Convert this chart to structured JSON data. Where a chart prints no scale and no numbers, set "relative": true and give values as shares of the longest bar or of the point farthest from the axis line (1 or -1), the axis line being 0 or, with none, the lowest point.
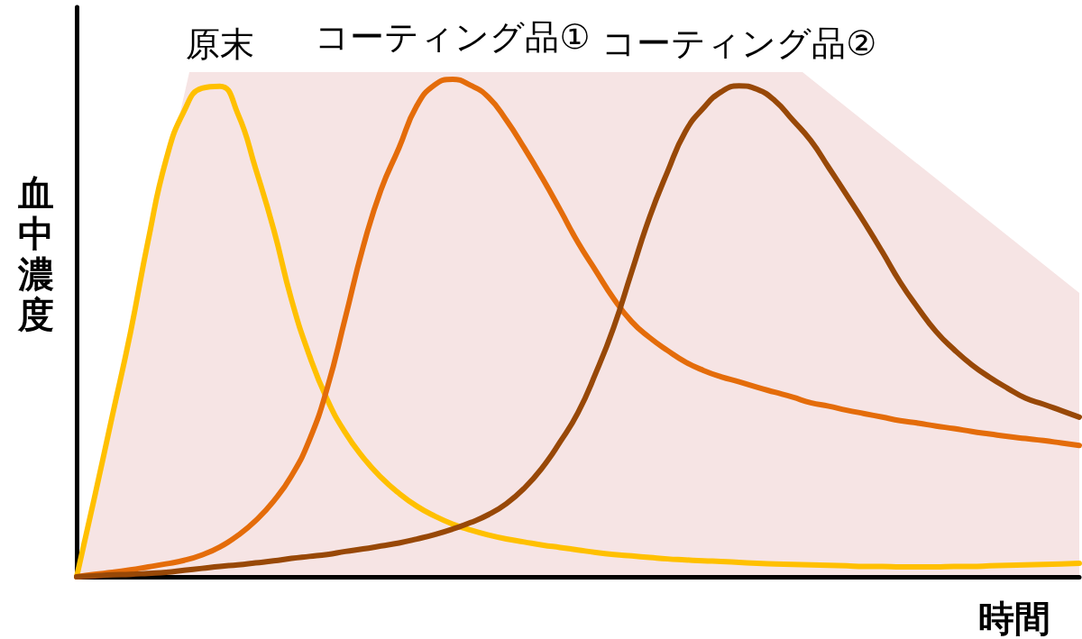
{
  "chart_data": {
    "type": "line",
    "relative": true,
    "xlabel": "時間",
    "ylabel": "血中濃度",
    "line_style": "solid",
    "categories": [
      null,
      null,
      null,
      null,
      null,
      null,
      null,
      null,
      null,
      null,
      null,
      null,
      null,
      null,
      null,
      null,
      null,
      null,
      null,
      null,
      null,
      null,
      null,
      null,
      null,
      null,
      null,
      null,
      null,
      null,
      null,
      null,
      null,
      null,
      null,
      null,
      null,
      null,
      null,
      null,
      null,
      null,
      null,
      null,
      null,
      null,
      null,
      null,
      null,
      null,
      null,
      null,
      null,
      null,
      null,
      null,
      null
    ],
    "series": [
      {
        "name": "原末",
        "color": "#ffc000",
        "values": [
          0,
          0.16,
          0.325,
          0.49,
          0.677,
          0.839,
          0.936,
          0.982,
          0.986,
          0.931,
          0.82,
          0.699,
          0.557,
          0.445,
          0.356,
          0.29,
          0.24,
          0.2,
          0.168,
          0.142,
          0.122,
          0.106,
          0.094,
          0.084,
          0.076,
          0.07,
          0.064,
          0.059,
          0.054,
          0.049,
          0.045,
          0.042,
          0.039,
          0.036,
          0.034,
          0.032,
          0.031,
          0.029,
          0.027,
          0.026,
          0.025,
          0.024,
          0.023,
          0.022,
          0.021,
          0.021,
          0.02,
          0.02,
          0.02,
          0.021,
          0.021,
          0.022,
          0.023,
          0.024,
          0.025,
          0.026,
          0.027
        ]
      },
      {
        "name": "コーティング品①",
        "color": "#e46c0a",
        "values": [
          0,
          0.005,
          0.009,
          0.014,
          0.02,
          0.026,
          0.033,
          0.044,
          0.06,
          0.083,
          0.113,
          0.152,
          0.203,
          0.275,
          0.38,
          0.52,
          0.663,
          0.778,
          0.862,
          0.947,
          0.989,
          1,
          0.988,
          0.964,
          0.918,
          0.862,
          0.802,
          0.738,
          0.672,
          0.615,
          0.559,
          0.513,
          0.481,
          0.455,
          0.432,
          0.415,
          0.402,
          0.392,
          0.381,
          0.371,
          0.361,
          0.35,
          0.343,
          0.335,
          0.328,
          0.321,
          0.314,
          0.309,
          0.303,
          0.298,
          0.292,
          0.287,
          0.282,
          0.278,
          0.274,
          0.269,
          0.264
        ]
      },
      {
        "name": "コーティング品②",
        "color": "#984807",
        "values": [
          0,
          0.002,
          0.004,
          0.005,
          0.007,
          0.009,
          0.013,
          0.017,
          0.021,
          0.024,
          0.028,
          0.032,
          0.037,
          0.041,
          0.045,
          0.051,
          0.056,
          0.062,
          0.068,
          0.076,
          0.085,
          0.096,
          0.109,
          0.125,
          0.147,
          0.178,
          0.219,
          0.271,
          0.33,
          0.41,
          0.502,
          0.613,
          0.723,
          0.814,
          0.895,
          0.942,
          0.975,
          0.987,
          0.98,
          0.957,
          0.918,
          0.877,
          0.823,
          0.768,
          0.712,
          0.653,
          0.592,
          0.54,
          0.493,
          0.457,
          0.426,
          0.401,
          0.379,
          0.359,
          0.347,
          0.334,
          0.321
        ]
      }
    ]
  }
}
